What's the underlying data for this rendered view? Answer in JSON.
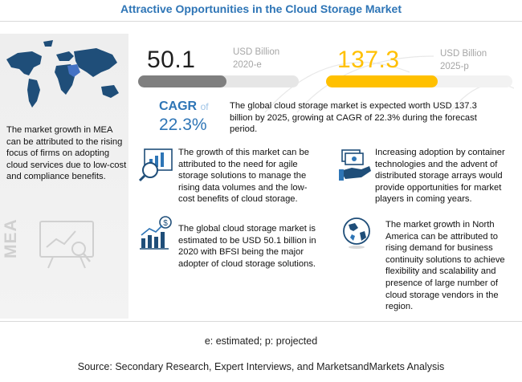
{
  "title": "Attractive Opportunities in the Cloud Storage Market",
  "left_panel": {
    "text": "The market growth in MEA can be attributed to the rising focus of firms on adopting cloud services due to low-cost and compliance benefits.",
    "region_label": "MEA"
  },
  "market_2020": {
    "value": "50.1",
    "unit": "USD Billion",
    "year": "2020-e",
    "bar_fill_fraction": 0.55,
    "bar_color": "#7f7f7f"
  },
  "market_2025": {
    "value": "137.3",
    "unit": "USD Billion",
    "year": "2025-p",
    "bar_fill_fraction": 0.6,
    "bar_color": "#ffc000"
  },
  "cagr": {
    "label": "CAGR",
    "of": "of",
    "value": "22.3%",
    "text": "The global cloud storage market is expected worth USD 137.3 billion by 2025, growing at CAGR of 22.3% during the forecast period."
  },
  "insights": [
    {
      "icon": "analytics-magnifier-icon",
      "text": "The growth of this market can be attributed to the need for agile storage solutions to manage the rising data volumes and the low-cost benefits of cloud storage."
    },
    {
      "icon": "money-hand-icon",
      "text": "Increasing adoption by container technologies and the advent of distributed storage arrays would provide opportunities for market players in coming years."
    },
    {
      "icon": "dollar-bar-chart-icon",
      "text": "The global cloud storage market is estimated to be USD 50.1 billion in 2020 with BFSI being the major adopter of cloud storage solutions."
    },
    {
      "icon": "globe-icon",
      "text": "The market growth in North America can be attributed to rising demand for business continuity solutions to achieve flexibility and scalability and presence of large number of cloud storage vendors in the region."
    }
  ],
  "footnote": "e: estimated; p: projected",
  "source": "Source: Secondary Research, Expert Interviews, and MarketsandMarkets Analysis",
  "colors": {
    "accent_blue": "#2e75b6",
    "yellow": "#ffc000",
    "gray_bar": "#7f7f7f"
  }
}
